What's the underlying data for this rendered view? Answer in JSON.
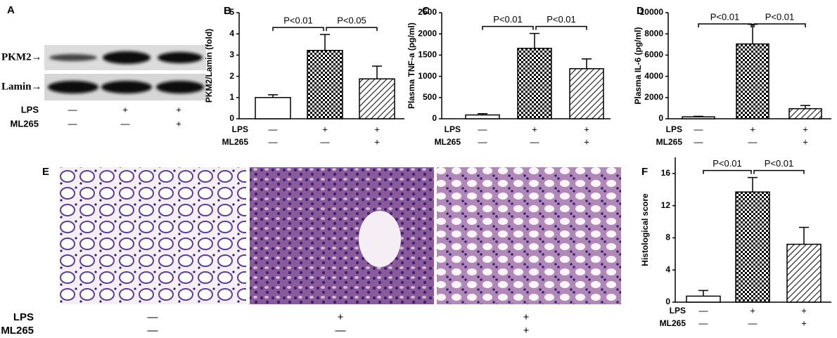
{
  "blot": {
    "panel": "A",
    "rows": [
      "PKM2→",
      "Lamin→"
    ],
    "conditions": [
      {
        "name": "LPS",
        "values": [
          "—",
          "+",
          "+"
        ]
      },
      {
        "name": "ML265",
        "values": [
          "—",
          "—",
          "+"
        ]
      }
    ]
  },
  "histology": {
    "panel": "E",
    "conditions": [
      {
        "name": "LPS",
        "values": [
          "—",
          "+",
          "+"
        ]
      },
      {
        "name": "ML265",
        "values": [
          "—",
          "—",
          "+"
        ]
      }
    ]
  },
  "chart_data": [
    {
      "type": "bar",
      "panel": "B",
      "ylabel": "PKM2/Lamin (fold)",
      "values": [
        1,
        3.22,
        1.88
      ],
      "errors": [
        0.13,
        0.75,
        0.6
      ],
      "fills": [
        "white",
        "checker",
        "hatch"
      ],
      "ylim": [
        0,
        5
      ],
      "yticks": [
        0,
        1,
        2,
        3,
        4,
        5
      ],
      "annotations": [
        {
          "text": "P<0.01",
          "bars": [
            0,
            1
          ]
        },
        {
          "text": "P<0.05",
          "bars": [
            1,
            2
          ]
        }
      ],
      "conditions": [
        {
          "name": "LPS",
          "values": [
            "—",
            "+",
            "+"
          ]
        },
        {
          "name": "ML265",
          "values": [
            "—",
            "—",
            "+"
          ]
        }
      ]
    },
    {
      "type": "bar",
      "panel": "C",
      "ylabel": "Plasma TNF-a (pg/ml)",
      "values": [
        90,
        1660,
        1180
      ],
      "errors": [
        30,
        350,
        230
      ],
      "fills": [
        "white",
        "checker",
        "hatch"
      ],
      "ylim": [
        0,
        2500
      ],
      "yticks": [
        0,
        500,
        1000,
        1500,
        2000,
        2500
      ],
      "annotations": [
        {
          "text": "P<0.01",
          "bars": [
            0,
            1
          ]
        },
        {
          "text": "P<0.01",
          "bars": [
            1,
            2
          ]
        }
      ],
      "conditions": [
        {
          "name": "LPS",
          "values": [
            "—",
            "+",
            "+"
          ]
        },
        {
          "name": "ML265",
          "values": [
            "—",
            "—",
            "+"
          ]
        }
      ]
    },
    {
      "type": "bar",
      "panel": "D",
      "ylabel": "Plasma IL-6 (pg/ml)",
      "values": [
        180,
        7050,
        950
      ],
      "errors": [
        50,
        1850,
        300
      ],
      "fills": [
        "white",
        "checker",
        "hatch"
      ],
      "ylim": [
        0,
        10000
      ],
      "yticks": [
        0,
        2000,
        4000,
        6000,
        8000,
        10000
      ],
      "annotations": [
        {
          "text": "P<0.01",
          "bars": [
            0,
            1
          ]
        },
        {
          "text": "P<0.01",
          "bars": [
            1,
            2
          ]
        }
      ],
      "conditions": [
        {
          "name": "LPS",
          "values": [
            "—",
            "+",
            "+"
          ]
        },
        {
          "name": "ML265",
          "values": [
            "—",
            "—",
            "+"
          ]
        }
      ]
    },
    {
      "type": "bar",
      "panel": "F",
      "ylabel": "Histological score",
      "values": [
        0.75,
        13.7,
        7.2
      ],
      "errors": [
        0.7,
        1.8,
        2.1
      ],
      "fills": [
        "white",
        "checker",
        "hatch"
      ],
      "ylim": [
        0,
        18
      ],
      "yticks": [
        0,
        4,
        8,
        12,
        16
      ],
      "annotations": [
        {
          "text": "P<0.01",
          "bars": [
            0,
            1
          ]
        },
        {
          "text": "P<0.01",
          "bars": [
            1,
            2
          ]
        }
      ],
      "conditions": [
        {
          "name": "LPS",
          "values": [
            "—",
            "+",
            "+"
          ]
        },
        {
          "name": "ML265",
          "values": [
            "—",
            "—",
            "+"
          ]
        }
      ]
    }
  ]
}
